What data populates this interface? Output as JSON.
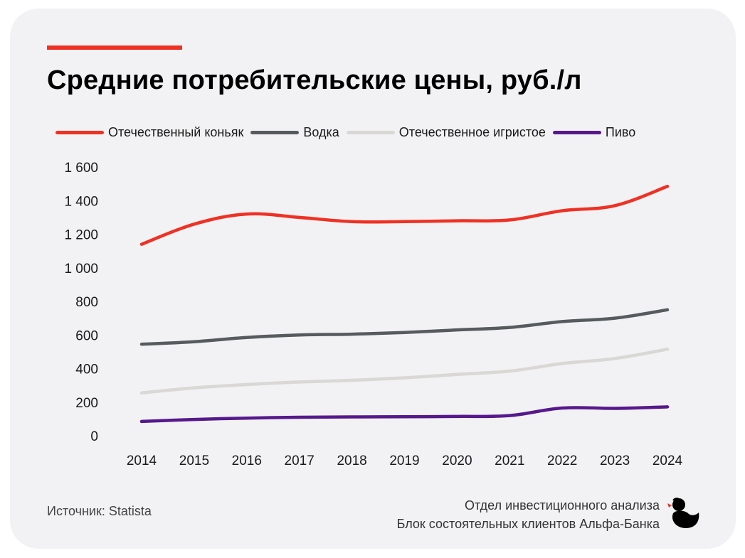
{
  "title": "Средние потребительские цены, руб./л",
  "source": "Источник: Statista",
  "credits": {
    "line1": "Отдел инвестиционного анализа",
    "line2": "Блок состоятельных клиентов Альфа-Банка"
  },
  "colors": {
    "accent": "#ef3124",
    "background": "#f2f2f4"
  },
  "logo_icon": "duck-icon",
  "chart_data": {
    "type": "line",
    "title": "Средние потребительские цены, руб./л",
    "x": [
      "2014",
      "2015",
      "2016",
      "2017",
      "2018",
      "2019",
      "2020",
      "2021",
      "2022",
      "2023",
      "2024"
    ],
    "ylim": [
      0,
      1600
    ],
    "yticks": [
      0,
      200,
      400,
      600,
      800,
      1000,
      1200,
      1400,
      1600
    ],
    "ytick_labels": [
      "0",
      "200",
      "400",
      "600",
      "800",
      "1 000",
      "1 200",
      "1 400",
      "1 600"
    ],
    "grid": false,
    "legend_position": "top",
    "series": [
      {
        "name": "Отечественный коньяк",
        "color": "#ef3124",
        "values": [
          1140,
          1260,
          1320,
          1300,
          1275,
          1275,
          1280,
          1285,
          1340,
          1370,
          1485
        ]
      },
      {
        "name": "Водка",
        "color": "#565b5e",
        "values": [
          545,
          560,
          585,
          600,
          605,
          615,
          630,
          645,
          680,
          700,
          750
        ]
      },
      {
        "name": "Отечественное игристое",
        "color": "#d9d8d4",
        "values": [
          255,
          285,
          305,
          320,
          330,
          345,
          365,
          385,
          430,
          460,
          515
        ]
      },
      {
        "name": "Пиво",
        "color": "#56198c",
        "values": [
          85,
          97,
          105,
          110,
          112,
          113,
          115,
          120,
          165,
          163,
          172
        ]
      }
    ]
  }
}
